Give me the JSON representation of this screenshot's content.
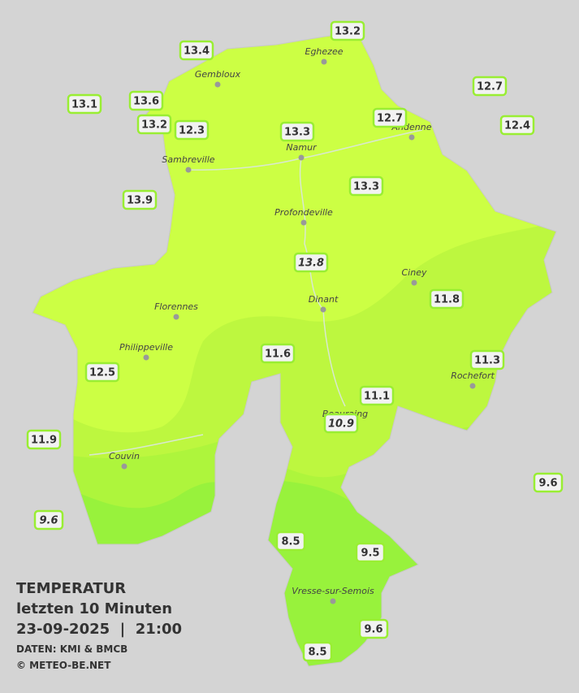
{
  "title": {
    "heading": "TEMPERATUR",
    "subtitle": "letzten 10 Minuten",
    "datetime": "23-09-2025  |  21:00",
    "source": "DATEN: KMI & BMCB",
    "copyright": "© METEO-BE.NET"
  },
  "cities": [
    {
      "name": "Eghezee"
    },
    {
      "name": "Gembloux"
    },
    {
      "name": "Andenne"
    },
    {
      "name": "Namur"
    },
    {
      "name": "Sambreville"
    },
    {
      "name": "Profondeville"
    },
    {
      "name": "Ciney"
    },
    {
      "name": "Dinant"
    },
    {
      "name": "Florennes"
    },
    {
      "name": "Philippeville"
    },
    {
      "name": "Rochefort"
    },
    {
      "name": "Beauraing"
    },
    {
      "name": "Couvin"
    },
    {
      "name": "Vresse-sur-Semois"
    }
  ],
  "stations": [
    {
      "value": "13.2"
    },
    {
      "value": "13.4"
    },
    {
      "value": "13.1"
    },
    {
      "value": "13.6"
    },
    {
      "value": "13.2"
    },
    {
      "value": "12.3"
    },
    {
      "value": "13.3"
    },
    {
      "value": "12.7"
    },
    {
      "value": "12.7"
    },
    {
      "value": "12.4"
    },
    {
      "value": "13.9"
    },
    {
      "value": "13.3"
    },
    {
      "value": "13.8",
      "italic": true
    },
    {
      "value": "11.8"
    },
    {
      "value": "11.6"
    },
    {
      "value": "11.3"
    },
    {
      "value": "12.5"
    },
    {
      "value": "11.1"
    },
    {
      "value": "10.9",
      "italic": true
    },
    {
      "value": "11.9"
    },
    {
      "value": "9.6"
    },
    {
      "value": "9.6",
      "italic": true
    },
    {
      "value": "8.5"
    },
    {
      "value": "9.5"
    },
    {
      "value": "9.6"
    },
    {
      "value": "8.5"
    }
  ]
}
